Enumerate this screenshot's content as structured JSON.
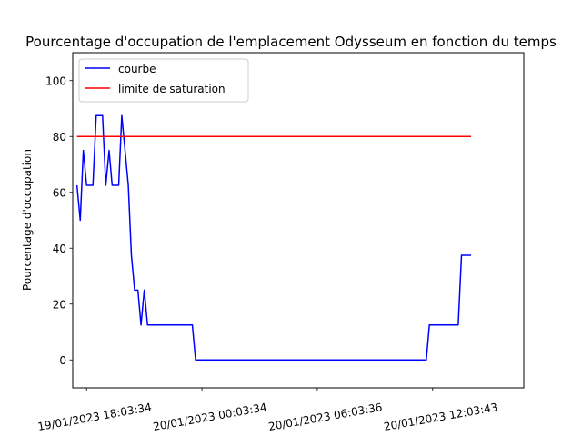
{
  "chart_data": {
    "type": "line",
    "title": "Pourcentage d'occupation de l'emplacement Odysseum en fonction du temps",
    "xlabel": "",
    "ylabel": "Pourcentage d'occupation",
    "x_unit": "hours",
    "xlim": [
      -0.72,
      22.74
    ],
    "ylim": [
      -10,
      110
    ],
    "y_ticks": [
      0,
      20,
      40,
      60,
      80,
      100
    ],
    "x_ticks": [
      {
        "value": 0,
        "label": "19/01/2023 18:03:34"
      },
      {
        "value": 6,
        "label": "20/01/2023 00:03:34"
      },
      {
        "value": 12,
        "label": "20/01/2023 06:03:36"
      },
      {
        "value": 18,
        "label": "20/01/2023 12:03:43"
      }
    ],
    "grid": false,
    "legend_position": "top-left",
    "series": [
      {
        "name": "courbe",
        "color": "#0000ff",
        "x": [
          -0.5,
          -0.33,
          -0.17,
          0.0,
          0.17,
          0.33,
          0.5,
          0.67,
          0.83,
          1.0,
          1.17,
          1.33,
          1.5,
          1.67,
          1.83,
          2.0,
          2.17,
          2.33,
          2.5,
          2.67,
          2.83,
          3.0,
          3.17,
          3.33,
          5.5,
          5.67,
          17.67,
          17.83,
          19.33,
          19.5,
          20.0
        ],
        "y": [
          62.5,
          50,
          75,
          62.5,
          62.5,
          62.5,
          87.5,
          87.5,
          87.5,
          62.5,
          75,
          62.5,
          62.5,
          62.5,
          87.5,
          75,
          62.5,
          37.5,
          25,
          25,
          12.5,
          25,
          12.5,
          12.5,
          12.5,
          0,
          0,
          12.5,
          12.5,
          37.5,
          37.5
        ]
      },
      {
        "name": "limite de saturation",
        "color": "#ff0000",
        "x": [
          -0.5,
          20.0
        ],
        "y": [
          80,
          80
        ]
      }
    ]
  }
}
